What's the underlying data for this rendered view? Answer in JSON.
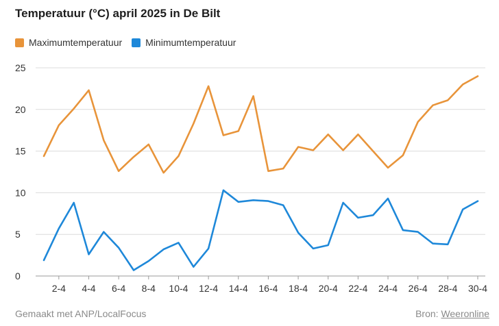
{
  "title": "Temperatuur (°C) april 2025 in De Bilt",
  "footer": {
    "made_with": "Gemaakt met ANP/LocalFocus",
    "source_prefix": "Bron:",
    "source_link": "Weeronline"
  },
  "chart_data": {
    "type": "line",
    "title": "Temperatuur (°C) april 2025 in De Bilt",
    "xlabel": "",
    "ylabel": "",
    "ylim": [
      0,
      25
    ],
    "yticks": [
      0,
      5,
      10,
      15,
      20,
      25
    ],
    "grid": true,
    "legend_position": "top-left",
    "x": [
      "1-4",
      "2-4",
      "3-4",
      "4-4",
      "5-4",
      "6-4",
      "7-4",
      "8-4",
      "9-4",
      "10-4",
      "11-4",
      "12-4",
      "13-4",
      "14-4",
      "15-4",
      "16-4",
      "17-4",
      "18-4",
      "19-4",
      "20-4",
      "21-4",
      "22-4",
      "23-4",
      "24-4",
      "25-4",
      "26-4",
      "27-4",
      "28-4",
      "29-4",
      "30-4"
    ],
    "xtick_labels": [
      "2-4",
      "4-4",
      "6-4",
      "8-4",
      "10-4",
      "12-4",
      "14-4",
      "16-4",
      "18-4",
      "20-4",
      "22-4",
      "24-4",
      "26-4",
      "28-4",
      "30-4"
    ],
    "series": [
      {
        "name": "Maximumtemperatuur",
        "color": "#e8943a",
        "values": [
          14.4,
          18.1,
          20.1,
          22.3,
          16.3,
          12.6,
          14.3,
          15.8,
          12.4,
          14.4,
          18.3,
          22.8,
          16.9,
          17.4,
          21.6,
          12.6,
          12.9,
          15.5,
          15.1,
          17.0,
          15.1,
          17.0,
          15.0,
          13.0,
          14.5,
          18.5,
          20.5,
          21.1,
          23.0,
          24.0
        ]
      },
      {
        "name": "Minimumtemperatuur",
        "color": "#1e88d9",
        "values": [
          1.9,
          5.7,
          8.8,
          2.6,
          5.3,
          3.4,
          0.7,
          1.8,
          3.2,
          4.0,
          1.1,
          3.3,
          10.3,
          8.9,
          9.1,
          9.0,
          8.5,
          5.2,
          3.3,
          3.7,
          8.8,
          7.0,
          7.3,
          9.3,
          5.5,
          5.3,
          3.9,
          3.8,
          8.0,
          9.0
        ]
      }
    ]
  }
}
